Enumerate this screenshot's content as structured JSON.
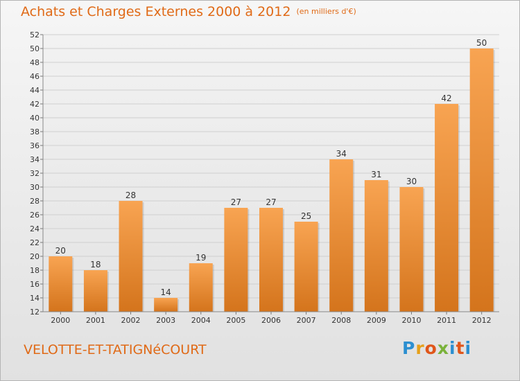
{
  "header": {
    "title": "Achats et Charges Externes 2000 à 2012",
    "unit": "(en milliers d'€)"
  },
  "footer": {
    "commune": "VELOTTE-ET-TATIGNéCOURT",
    "logo_text": "Proxiti"
  },
  "colors": {
    "accent": "#e06a17",
    "bar_top": "#f8a452",
    "bar_bottom": "#d4741c"
  },
  "chart_data": {
    "type": "bar",
    "title": "Achats et Charges Externes 2000 à 2012",
    "subtitle": "(en milliers d'€)",
    "categories": [
      "2000",
      "2001",
      "2002",
      "2003",
      "2004",
      "2005",
      "2006",
      "2007",
      "2008",
      "2009",
      "2010",
      "2011",
      "2012"
    ],
    "values": [
      20,
      18,
      28,
      14,
      19,
      27,
      27,
      25,
      34,
      31,
      30,
      42,
      50
    ],
    "ylim": [
      12,
      52
    ],
    "yticks": [
      12,
      14,
      16,
      18,
      20,
      22,
      24,
      26,
      28,
      30,
      32,
      34,
      36,
      38,
      40,
      42,
      44,
      46,
      48,
      50,
      52
    ],
    "grid": true,
    "data_labels": true
  }
}
